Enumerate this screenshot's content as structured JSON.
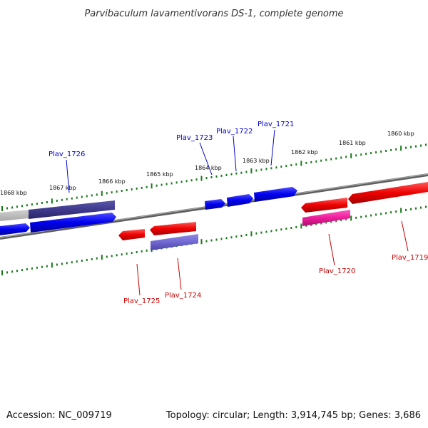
{
  "title": "Parvibaculum lavamentivorans DS-1, complete genome",
  "footer": {
    "accession": "Accession: NC_009719",
    "topology": "Topology: circular; Length: 3,914,745 bp; Genes: 3,686"
  },
  "ruler_labels": [
    "1868 kbp",
    "1867 kbp",
    "1866 kbp",
    "1865 kbp",
    "1864 kbp",
    "1863 kbp",
    "1862 kbp",
    "1861 kbp",
    "1860 kbp"
  ],
  "genes": {
    "forward": [
      "Plav_1726",
      "Plav_1723",
      "Plav_1722",
      "Plav_1721"
    ],
    "reverse": [
      "Plav_1725",
      "Plav_1724",
      "Plav_1720",
      "Plav_1719"
    ]
  },
  "colors": {
    "forward_strand": "#0000ee",
    "reverse_strand": "#ee0000",
    "dark_purple": "#3f3a8c",
    "light_purple": "#7068d0",
    "magenta": "#ee1d9a",
    "backbone": "#777777",
    "ticks": "#1a7a1a"
  }
}
